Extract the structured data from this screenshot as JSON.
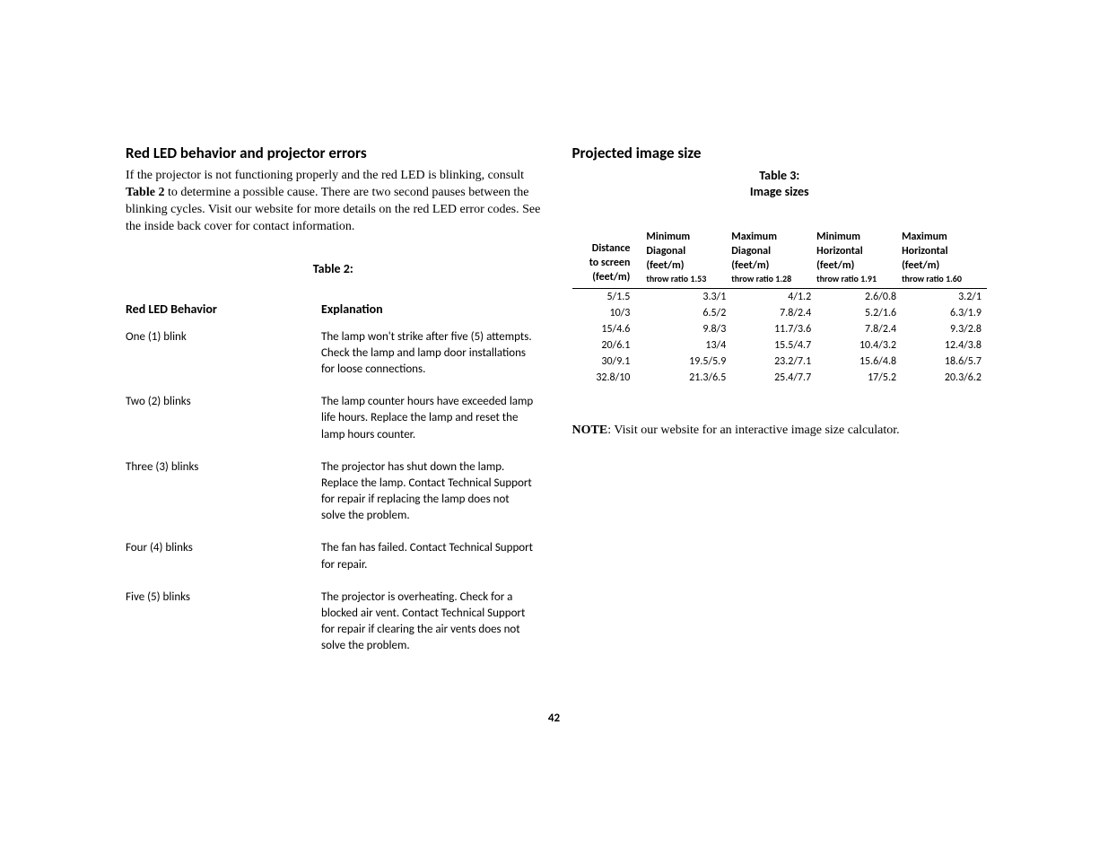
{
  "left": {
    "heading": "Red LED behavior and projector errors",
    "intro_a": "If the projector is not functioning properly and the red LED is blinking, consult ",
    "intro_b_bold": "Table 2",
    "intro_c": " to determine a possible cause. There are two second pauses between the blinking cycles. Visit our website for more details on the red LED error codes. See the inside back cover for contact information.",
    "caption": "Table 2:",
    "col1": "Red LED Behavior",
    "col2": "Explanation",
    "rows": [
      {
        "b": "One (1) blink",
        "e": "The lamp won't strike after five (5) attempts. Check the lamp and lamp door installations for loose connections."
      },
      {
        "b": "Two (2) blinks",
        "e": "The lamp counter hours have exceeded lamp life hours. Replace the lamp and reset the lamp hours counter."
      },
      {
        "b": "Three (3) blinks",
        "e": "The projector has shut down the lamp. Replace the lamp. Contact Technical Support for repair if replacing the lamp does not solve the problem."
      },
      {
        "b": "Four (4) blinks",
        "e": "The fan has failed. Contact Technical Support for repair."
      },
      {
        "b": "Five (5) blinks",
        "e": "The projector is overheating. Check for a blocked air vent. Contact Technical Support for repair if clearing the air vents does not solve the problem."
      }
    ]
  },
  "right": {
    "heading": "Projected image size",
    "caption_a": "Table 3:",
    "caption_b": "Image sizes",
    "headers": [
      {
        "l1": "Distance",
        "l2": "to screen",
        "l3": "(feet/m)",
        "sub": ""
      },
      {
        "l1": "Minimum",
        "l2": "Diagonal",
        "l3": "(feet/m)",
        "sub": "throw ratio 1.53"
      },
      {
        "l1": "Maximum",
        "l2": "Diagonal",
        "l3": "(feet/m)",
        "sub": "throw ratio 1.28"
      },
      {
        "l1": "Minimum",
        "l2": "Horizontal",
        "l3": "(feet/m)",
        "sub": "throw ratio 1.91"
      },
      {
        "l1": "Maximum",
        "l2": "Horizontal",
        "l3": "(feet/m)",
        "sub": "throw ratio 1.60"
      }
    ],
    "rows": [
      [
        "5/1.5",
        "3.3/1",
        "4/1.2",
        "2.6/0.8",
        "3.2/1"
      ],
      [
        "10/3",
        "6.5/2",
        "7.8/2.4",
        "5.2/1.6",
        "6.3/1.9"
      ],
      [
        "15/4.6",
        "9.8/3",
        "11.7/3.6",
        "7.8/2.4",
        "9.3/2.8"
      ],
      [
        "20/6.1",
        "13/4",
        "15.5/4.7",
        "10.4/3.2",
        "12.4/3.8"
      ],
      [
        "30/9.1",
        "19.5/5.9",
        "23.2/7.1",
        "15.6/4.8",
        "18.6/5.7"
      ],
      [
        "32.8/10",
        "21.3/6.5",
        "25.4/7.7",
        "17/5.2",
        "20.3/6.2"
      ]
    ],
    "note_bold": "NOTE",
    "note_rest": ": Visit our website for an interactive image size calculator."
  },
  "page_number": "42"
}
